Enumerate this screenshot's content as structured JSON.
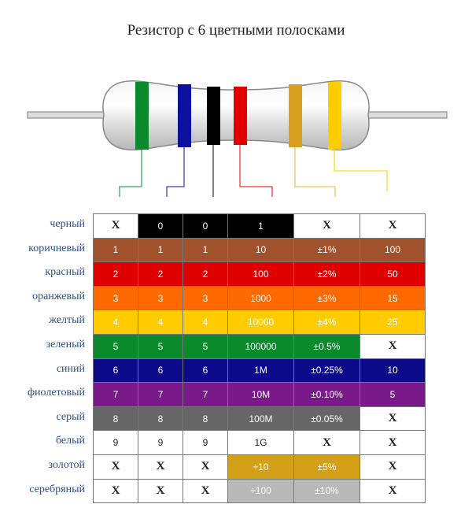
{
  "title": "Резистор с 6 цветными полосками",
  "bands": [
    {
      "name": "green",
      "color": "#0a8a2a"
    },
    {
      "name": "blue",
      "color": "#0b12a0"
    },
    {
      "name": "black",
      "color": "#000000"
    },
    {
      "name": "red",
      "color": "#e00000"
    },
    {
      "name": "gold",
      "color": "#d8a020"
    },
    {
      "name": "yellow",
      "color": "#ffcc00"
    }
  ],
  "rows": [
    {
      "label": "черный",
      "bg": "#000000",
      "cells": [
        "X",
        "0",
        "0",
        "1",
        "X",
        "X"
      ]
    },
    {
      "label": "коричневый",
      "bg": "#a0522d",
      "cells": [
        "1",
        "1",
        "1",
        "10",
        "±1%",
        "100"
      ]
    },
    {
      "label": "красный",
      "bg": "#e00000",
      "cells": [
        "2",
        "2",
        "2",
        "100",
        "±2%",
        "50"
      ]
    },
    {
      "label": "оранжевый",
      "bg": "#ff6a00",
      "cells": [
        "3",
        "3",
        "3",
        "1000",
        "±3%",
        "15"
      ]
    },
    {
      "label": "желтый",
      "bg": "#ffcc00",
      "cells": [
        "4",
        "4",
        "4",
        "10000",
        "±4%",
        "25"
      ]
    },
    {
      "label": "зеленый",
      "bg": "#0a8a2a",
      "cells": [
        "5",
        "5",
        "5",
        "100000",
        "±0.5%",
        "X"
      ]
    },
    {
      "label": "синий",
      "bg": "#0b0b8a",
      "cells": [
        "6",
        "6",
        "6",
        "1M",
        "±0.25%",
        "10"
      ]
    },
    {
      "label": "фиолетовый",
      "bg": "#7a1a8a",
      "cells": [
        "7",
        "7",
        "7",
        "10M",
        "±0.10%",
        "5"
      ]
    },
    {
      "label": "серый",
      "bg": "#666666",
      "cells": [
        "8",
        "8",
        "8",
        "100M",
        "±0.05%",
        "X"
      ]
    },
    {
      "label": "белый",
      "bg": "#ffffff",
      "cells": [
        "9",
        "9",
        "9",
        "1G",
        "X",
        "X"
      ]
    },
    {
      "label": "золотой",
      "bg": "#d4a017",
      "cells": [
        "X",
        "X",
        "X",
        "÷10",
        "±5%",
        "X"
      ]
    },
    {
      "label": "серебряный",
      "bg": "#b8b8b8",
      "cells": [
        "X",
        "X",
        "X",
        "÷100",
        "±10%",
        "X"
      ]
    }
  ]
}
